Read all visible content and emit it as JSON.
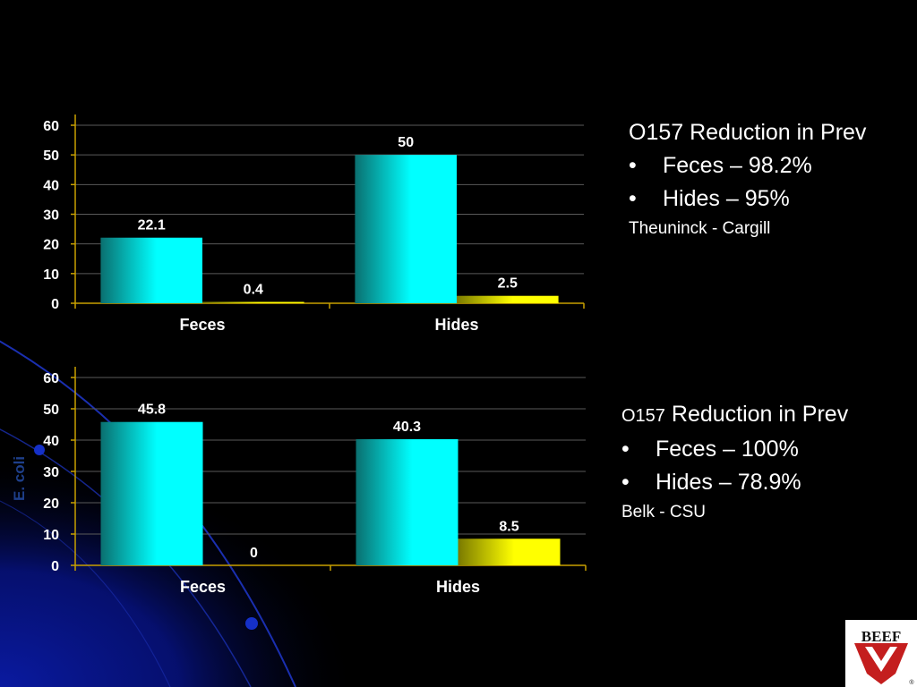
{
  "background": {
    "base": "#000000",
    "glow": "#0a1aa0",
    "arc": "#1a2fb0",
    "bead": "#1530c8"
  },
  "colors": {
    "bar_cyan": "#00ffff",
    "bar_cyan_dark": "#0a6f6f",
    "bar_yellow": "#ffff00",
    "bar_yellow_dark": "#7a7a00",
    "axis": "#c8a000",
    "grid": "#5a5a5a",
    "text": "#ffffff"
  },
  "y_axis_label": "E. coli",
  "chart_data": [
    {
      "type": "bar",
      "categories": [
        "Feces",
        "Hides"
      ],
      "series": [
        {
          "values": [
            22.1,
            50
          ],
          "color": "cyan"
        },
        {
          "values": [
            0.4,
            2.5
          ],
          "color": "yellow"
        }
      ],
      "data_labels": [
        [
          "22.1",
          "50"
        ],
        [
          "0.4",
          "2.5"
        ]
      ],
      "ylim": [
        0,
        60
      ],
      "yticks": [
        "0",
        "10",
        "20",
        "30",
        "40",
        "50",
        "60"
      ],
      "grid": true,
      "title": "",
      "xlabel": "",
      "ylabel": ""
    },
    {
      "type": "bar",
      "categories": [
        "Feces",
        "Hides"
      ],
      "series": [
        {
          "values": [
            45.8,
            40.3
          ],
          "color": "cyan"
        },
        {
          "values": [
            0,
            8.5
          ],
          "color": "yellow"
        }
      ],
      "data_labels": [
        [
          "45.8",
          "40.3"
        ],
        [
          "0",
          "8.5"
        ]
      ],
      "ylim": [
        0,
        60
      ],
      "yticks": [
        "0",
        "10",
        "20",
        "30",
        "40",
        "50",
        "60"
      ],
      "grid": true,
      "title": "",
      "xlabel": "",
      "ylabel": "E. coli"
    }
  ],
  "panels": [
    {
      "heading": "O157 Reduction in Prev",
      "bullets": [
        "Feces – 98.2%",
        "Hides – 95%"
      ],
      "source": "Theuninck - Cargill"
    },
    {
      "heading_prefix": "O157",
      "heading_rest": " Reduction in Prev",
      "bullets": [
        "Feces – 100%",
        "Hides – 78.9%"
      ],
      "source": "Belk - CSU"
    }
  ],
  "bullet_glyph": "•",
  "logo": {
    "text": "BEEF",
    "registered": "®"
  }
}
